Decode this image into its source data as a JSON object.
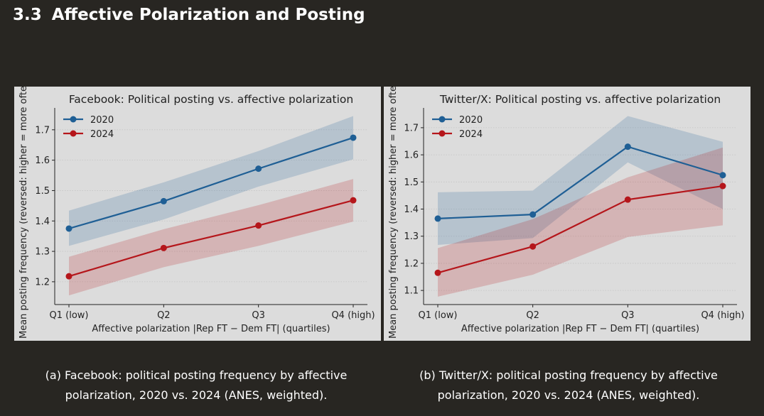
{
  "section": {
    "number": "3.3",
    "title": "Affective Polarization and Posting"
  },
  "chart_data": [
    {
      "type": "line",
      "title": "Facebook: Political posting vs. affective polarization",
      "xlabel": "Affective polarization |Rep FT − Dem FT| (quartiles)",
      "ylabel": "Mean posting frequency (reversed: higher = more often)",
      "categories": [
        "Q1 (low)",
        "Q2",
        "Q3",
        "Q4 (high)"
      ],
      "ylim": [
        1.125,
        1.772
      ],
      "yticks": [
        "1.2",
        "1.3",
        "1.4",
        "1.5",
        "1.6",
        "1.7"
      ],
      "grid": true,
      "legend": "top-left",
      "series": [
        {
          "name": "2020",
          "color": "#1f5f95",
          "values": [
            1.375,
            1.465,
            1.572,
            1.674
          ],
          "lower": [
            1.318,
            1.405,
            1.513,
            1.603
          ],
          "upper": [
            1.434,
            1.527,
            1.63,
            1.745
          ]
        },
        {
          "name": "2024",
          "color": "#b5161b",
          "values": [
            1.218,
            1.311,
            1.385,
            1.468
          ],
          "lower": [
            1.155,
            1.248,
            1.318,
            1.398
          ],
          "upper": [
            1.282,
            1.373,
            1.452,
            1.538
          ]
        }
      ]
    },
    {
      "type": "line",
      "title": "Twitter/X: Political posting vs. affective polarization",
      "xlabel": "Affective polarization |Rep FT − Dem FT| (quartiles)",
      "ylabel": "Mean posting frequency (reversed: higher = more often)",
      "categories": [
        "Q1 (low)",
        "Q2",
        "Q3",
        "Q4 (high)"
      ],
      "ylim": [
        1.048,
        1.773
      ],
      "yticks": [
        "1.1",
        "1.2",
        "1.3",
        "1.4",
        "1.5",
        "1.6",
        "1.7"
      ],
      "grid": true,
      "legend": "top-left",
      "series": [
        {
          "name": "2020",
          "color": "#1f5f95",
          "values": [
            1.365,
            1.38,
            1.63,
            1.525
          ],
          "lower": [
            1.268,
            1.293,
            1.572,
            1.4
          ],
          "upper": [
            1.462,
            1.468,
            1.743,
            1.648
          ]
        },
        {
          "name": "2024",
          "color": "#b5161b",
          "values": [
            1.165,
            1.262,
            1.435,
            1.485
          ],
          "lower": [
            1.077,
            1.158,
            1.297,
            1.34
          ],
          "upper": [
            1.256,
            1.363,
            1.517,
            1.627
          ]
        }
      ]
    }
  ],
  "captions": [
    {
      "label": "(a)",
      "text": "Facebook: political posting frequency by affective polarization, 2020 vs. 2024 (ANES, weighted)."
    },
    {
      "label": "(b)",
      "text": "Twitter/X: political posting frequency by affective polarization, 2020 vs. 2024 (ANES, weighted)."
    }
  ]
}
